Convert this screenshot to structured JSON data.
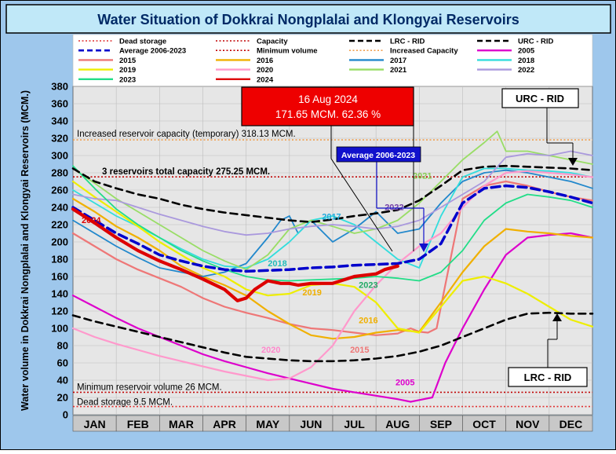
{
  "chart_data": {
    "type": "line",
    "title": "Water Situation of Dokkrai Nongplalai and Klongyai Reservoirs",
    "ylabel": "Water volume in Dokkrai Nongplalai and Klongyai Reservoirs (MCM.)",
    "xlabel": "",
    "ylim": [
      0,
      380
    ],
    "yticks": [
      0,
      20,
      40,
      60,
      80,
      100,
      120,
      140,
      160,
      180,
      200,
      220,
      240,
      260,
      280,
      300,
      320,
      340,
      360,
      380
    ],
    "categories": [
      "JAN",
      "FEB",
      "MAR",
      "APR",
      "MAY",
      "JUN",
      "JUL",
      "AUG",
      "SEP",
      "OCT",
      "NOV",
      "DEC"
    ],
    "grid": true,
    "colors": {
      "plot_bg": "#e6e6e6",
      "title_bg": "#c0e8f8",
      "frame_bg": "#9ec7ec",
      "month_bg": "#c8c8c8"
    },
    "legend": [
      {
        "label": "Dead storage",
        "color": "#e03030",
        "dash": "dot"
      },
      {
        "label": "Capacity",
        "color": "#c00000",
        "dash": "dot"
      },
      {
        "label": "LRC - RID",
        "color": "#000000",
        "dash": "dash"
      },
      {
        "label": "URC - RID",
        "color": "#000000",
        "dash": "dash"
      },
      {
        "label": "Average 2006-2023",
        "color": "#0000cc",
        "dash": "dash"
      },
      {
        "label": "Minimum volume",
        "color": "#c00000",
        "dash": "dot"
      },
      {
        "label": "Increased Capacity",
        "color": "#f0a050",
        "dash": "dot"
      },
      {
        "label": "2005",
        "color": "#dd00cc",
        "dash": "solid"
      },
      {
        "label": "2015",
        "color": "#ee7777",
        "dash": "solid"
      },
      {
        "label": "2016",
        "color": "#f0b000",
        "dash": "solid"
      },
      {
        "label": "2017",
        "color": "#2288cc",
        "dash": "solid"
      },
      {
        "label": "2018",
        "color": "#33dddd",
        "dash": "solid"
      },
      {
        "label": "2019",
        "color": "#eeee00",
        "dash": "solid"
      },
      {
        "label": "2020",
        "color": "#ff99cc",
        "dash": "solid"
      },
      {
        "label": "2021",
        "color": "#99dd66",
        "dash": "solid"
      },
      {
        "label": "2022",
        "color": "#aa99dd",
        "dash": "solid"
      },
      {
        "label": "2023",
        "color": "#22dd88",
        "dash": "solid"
      },
      {
        "label": "2024",
        "color": "#dd0000",
        "dash": "solid"
      }
    ],
    "hlines": [
      {
        "value": 318.13,
        "label": "Increased reservoir capacity (temporary)  318.13 MCM.",
        "color": "#f0a050"
      },
      {
        "value": 275.25,
        "label": "3 reservoirs total capacity 275.25 MCM.",
        "color": "#c00000"
      },
      {
        "value": 26,
        "label": "Minimum reservoir volume 26 MCM.",
        "color": "#c00000"
      },
      {
        "value": 9.5,
        "label": "Dead storage 9.5 MCM.",
        "color": "#e03030"
      }
    ],
    "series": [
      {
        "name": "URC - RID",
        "color": "#000000",
        "width": 2.6,
        "dash": "9,6",
        "x": [
          0,
          0.5,
          1,
          1.5,
          2,
          2.5,
          3,
          3.5,
          4,
          4.5,
          5,
          5.5,
          6,
          6.5,
          7,
          7.5,
          8,
          8.5,
          9,
          9.5,
          10,
          10.5,
          11,
          11.5,
          12
        ],
        "y": [
          285,
          270,
          262,
          255,
          250,
          243,
          238,
          234,
          231,
          228,
          225,
          223,
          226,
          230,
          233,
          237,
          248,
          265,
          283,
          287,
          288,
          287,
          286,
          285,
          283
        ]
      },
      {
        "name": "LRC - RID",
        "color": "#000000",
        "width": 2.6,
        "dash": "9,6",
        "x": [
          0,
          0.5,
          1,
          1.5,
          2,
          2.5,
          3,
          3.5,
          4,
          4.5,
          5,
          5.5,
          6,
          6.5,
          7,
          7.5,
          8,
          8.5,
          9,
          9.5,
          10,
          10.5,
          11,
          11.5,
          12
        ],
        "y": [
          115,
          108,
          102,
          96,
          90,
          84,
          78,
          72,
          67,
          65,
          63,
          62,
          62,
          63,
          65,
          68,
          73,
          80,
          90,
          100,
          110,
          117,
          118,
          117,
          117
        ]
      },
      {
        "name": "Average 2006-2023",
        "color": "#0000cc",
        "width": 3.5,
        "dash": "11,6",
        "x": [
          0,
          0.5,
          1,
          1.5,
          2,
          2.5,
          3,
          3.5,
          4,
          4.5,
          5,
          5.5,
          6,
          6.5,
          7,
          7.5,
          8,
          8.5,
          9,
          9.5,
          10,
          10.5,
          11,
          11.5,
          12
        ],
        "y": [
          240,
          225,
          210,
          198,
          185,
          178,
          172,
          168,
          166,
          167,
          168,
          170,
          171,
          173,
          174,
          175,
          180,
          198,
          245,
          262,
          265,
          263,
          258,
          252,
          245
        ]
      },
      {
        "name": "2005",
        "color": "#dd00cc",
        "width": 2.2,
        "x": [
          0,
          0.5,
          1,
          1.5,
          2,
          2.5,
          3,
          3.5,
          4,
          4.5,
          5,
          5.5,
          6,
          6.5,
          7,
          7.5,
          7.8,
          8,
          8.3,
          8.6,
          9,
          9.5,
          10,
          10.5,
          11,
          11.5,
          12
        ],
        "y": [
          138,
          125,
          112,
          100,
          90,
          80,
          70,
          62,
          55,
          48,
          42,
          36,
          30,
          26,
          22,
          18,
          15,
          17,
          20,
          60,
          100,
          145,
          185,
          205,
          208,
          210,
          205
        ]
      },
      {
        "name": "2015",
        "color": "#ee7777",
        "width": 2.2,
        "x": [
          0,
          0.5,
          1,
          1.5,
          2,
          2.5,
          3,
          3.5,
          4,
          4.5,
          5,
          5.5,
          6,
          6.5,
          7,
          7.5,
          7.8,
          8,
          8.2,
          8.4,
          8.6,
          8.8,
          9,
          9.5,
          10,
          10.5,
          11,
          11.5,
          12
        ],
        "y": [
          210,
          195,
          180,
          168,
          158,
          148,
          135,
          125,
          118,
          112,
          105,
          100,
          98,
          95,
          92,
          94,
          100,
          96,
          95,
          100,
          150,
          200,
          250,
          265,
          270,
          265,
          258,
          252,
          248
        ]
      },
      {
        "name": "2016",
        "color": "#f0b000",
        "width": 2.2,
        "x": [
          0,
          0.5,
          1,
          1.5,
          2,
          2.5,
          3,
          3.5,
          4,
          4.5,
          5,
          5.5,
          6,
          6.5,
          7,
          7.5,
          8,
          8.5,
          9,
          9.5,
          10,
          10.5,
          11,
          11.5,
          12
        ],
        "y": [
          250,
          235,
          218,
          205,
          190,
          172,
          160,
          150,
          138,
          120,
          105,
          92,
          88,
          90,
          95,
          98,
          96,
          130,
          165,
          195,
          215,
          212,
          210,
          207,
          205
        ]
      },
      {
        "name": "2017",
        "color": "#2288cc",
        "width": 1.8,
        "x": [
          0,
          0.5,
          1,
          1.5,
          2,
          2.5,
          3,
          3.5,
          4,
          4.5,
          4.8,
          5,
          5.2,
          5.5,
          6,
          6.5,
          7,
          7.5,
          8,
          8.5,
          9,
          9.5,
          10,
          10.5,
          11,
          11.5,
          12
        ],
        "y": [
          225,
          210,
          195,
          182,
          170,
          165,
          160,
          165,
          175,
          205,
          225,
          230,
          210,
          225,
          200,
          215,
          235,
          210,
          215,
          245,
          270,
          280,
          283,
          280,
          275,
          270,
          262
        ]
      },
      {
        "name": "2018",
        "color": "#33dddd",
        "width": 1.8,
        "x": [
          0,
          0.5,
          1,
          1.5,
          2,
          2.5,
          3,
          3.5,
          4,
          4.5,
          5,
          5.5,
          6,
          6.5,
          7,
          7.5,
          8,
          8.5,
          9,
          9.5,
          10,
          10.5,
          11,
          11.5,
          12
        ],
        "y": [
          260,
          245,
          230,
          218,
          205,
          192,
          180,
          172,
          170,
          180,
          200,
          225,
          230,
          220,
          200,
          180,
          170,
          230,
          275,
          285,
          285,
          283,
          282,
          280,
          275
        ]
      },
      {
        "name": "2019",
        "color": "#eeee00",
        "width": 2.2,
        "x": [
          0,
          0.5,
          1,
          1.5,
          2,
          2.5,
          3,
          3.5,
          4,
          4.5,
          5,
          5.5,
          6,
          6.5,
          7,
          7.5,
          8,
          8.5,
          9,
          9.5,
          10,
          10.5,
          11,
          11.5,
          12
        ],
        "y": [
          270,
          252,
          235,
          218,
          200,
          185,
          170,
          160,
          145,
          138,
          140,
          150,
          152,
          148,
          130,
          100,
          95,
          125,
          155,
          160,
          152,
          140,
          125,
          110,
          102
        ]
      },
      {
        "name": "2020",
        "color": "#ff99cc",
        "width": 2.2,
        "x": [
          0,
          0.5,
          1,
          1.5,
          2,
          2.5,
          3,
          3.5,
          4,
          4.5,
          5,
          5.5,
          6,
          6.5,
          7,
          7.5,
          8,
          8.5,
          9,
          9.5,
          10,
          10.5,
          11,
          11.5,
          12
        ],
        "y": [
          100,
          90,
          82,
          75,
          68,
          62,
          56,
          50,
          45,
          40,
          42,
          55,
          80,
          120,
          150,
          175,
          195,
          210,
          240,
          265,
          280,
          282,
          280,
          278,
          275
        ]
      },
      {
        "name": "2021",
        "color": "#99dd66",
        "width": 1.8,
        "x": [
          0,
          0.5,
          1,
          1.5,
          2,
          2.5,
          3,
          3.5,
          4,
          4.5,
          5,
          5.5,
          6,
          6.5,
          7,
          7.5,
          8,
          8.5,
          9,
          9.5,
          9.8,
          10,
          10.5,
          11,
          11.5,
          12
        ],
        "y": [
          285,
          268,
          250,
          235,
          220,
          205,
          190,
          178,
          168,
          185,
          215,
          225,
          218,
          210,
          215,
          225,
          245,
          270,
          295,
          315,
          328,
          305,
          305,
          300,
          295,
          290
        ]
      },
      {
        "name": "2022",
        "color": "#aa99dd",
        "width": 1.8,
        "x": [
          0,
          0.5,
          1,
          1.5,
          2,
          2.5,
          3,
          3.5,
          4,
          4.5,
          5,
          5.5,
          6,
          6.5,
          7,
          7.5,
          8,
          8.5,
          9,
          9.5,
          10,
          10.5,
          11,
          11.5,
          12
        ],
        "y": [
          255,
          250,
          248,
          240,
          232,
          225,
          218,
          212,
          208,
          210,
          215,
          218,
          220,
          218,
          215,
          218,
          225,
          240,
          255,
          270,
          298,
          302,
          300,
          305,
          300
        ]
      },
      {
        "name": "2023",
        "color": "#22dd88",
        "width": 1.8,
        "x": [
          0,
          0.5,
          1,
          1.5,
          2,
          2.5,
          3,
          3.5,
          4,
          4.5,
          5,
          5.5,
          6,
          6.5,
          7,
          7.5,
          8,
          8.5,
          9,
          9.5,
          10,
          10.5,
          11,
          11.5,
          12
        ],
        "y": [
          288,
          262,
          238,
          220,
          205,
          190,
          178,
          168,
          160,
          156,
          155,
          156,
          157,
          158,
          160,
          158,
          155,
          165,
          190,
          225,
          245,
          255,
          252,
          248,
          240
        ]
      },
      {
        "name": "2024",
        "color": "#dd0000",
        "width": 4.2,
        "x": [
          0,
          0.5,
          1,
          1.5,
          2,
          2.5,
          3,
          3.5,
          3.8,
          4,
          4.2,
          4.5,
          4.8,
          5,
          5.2,
          5.5,
          6,
          6.5,
          7,
          7.2,
          7.5
        ],
        "y": [
          238,
          222,
          205,
          190,
          178,
          168,
          157,
          145,
          132,
          135,
          145,
          155,
          152,
          152,
          150,
          152,
          152,
          160,
          163,
          168,
          172
        ]
      }
    ],
    "series_labels": [
      {
        "text": "2024",
        "x": 0.2,
        "y": 222,
        "color": "#dd0000"
      },
      {
        "text": "2017",
        "x": 5.75,
        "y": 226,
        "color": "#22aadd"
      },
      {
        "text": "2018",
        "x": 4.5,
        "y": 172,
        "color": "#22bbbb"
      },
      {
        "text": "2019",
        "x": 5.3,
        "y": 138,
        "color": "#f0b000"
      },
      {
        "text": "2023",
        "x": 6.6,
        "y": 147,
        "color": "#22aa66"
      },
      {
        "text": "2016",
        "x": 6.6,
        "y": 106,
        "color": "#f0b000"
      },
      {
        "text": "2015",
        "x": 6.4,
        "y": 72,
        "color": "#ee7777"
      },
      {
        "text": "2020",
        "x": 4.35,
        "y": 72,
        "color": "#ff88cc"
      },
      {
        "text": "2005",
        "x": 7.45,
        "y": 34,
        "color": "#dd00cc"
      },
      {
        "text": "2021",
        "x": 7.85,
        "y": 273,
        "color": "#88cc55"
      },
      {
        "text": "2022",
        "x": 7.2,
        "y": 237,
        "color": "#7744aa"
      }
    ],
    "callouts": {
      "current": {
        "line1": "16 Aug 2024",
        "line2": "171.65 MCM. 62.36 %",
        "color": "#ee0000"
      },
      "average": {
        "label": "Average 2006-2023",
        "color": "#1111cc"
      },
      "urc": {
        "label": "URC - RID"
      },
      "lrc": {
        "label": "LRC - RID"
      }
    }
  }
}
